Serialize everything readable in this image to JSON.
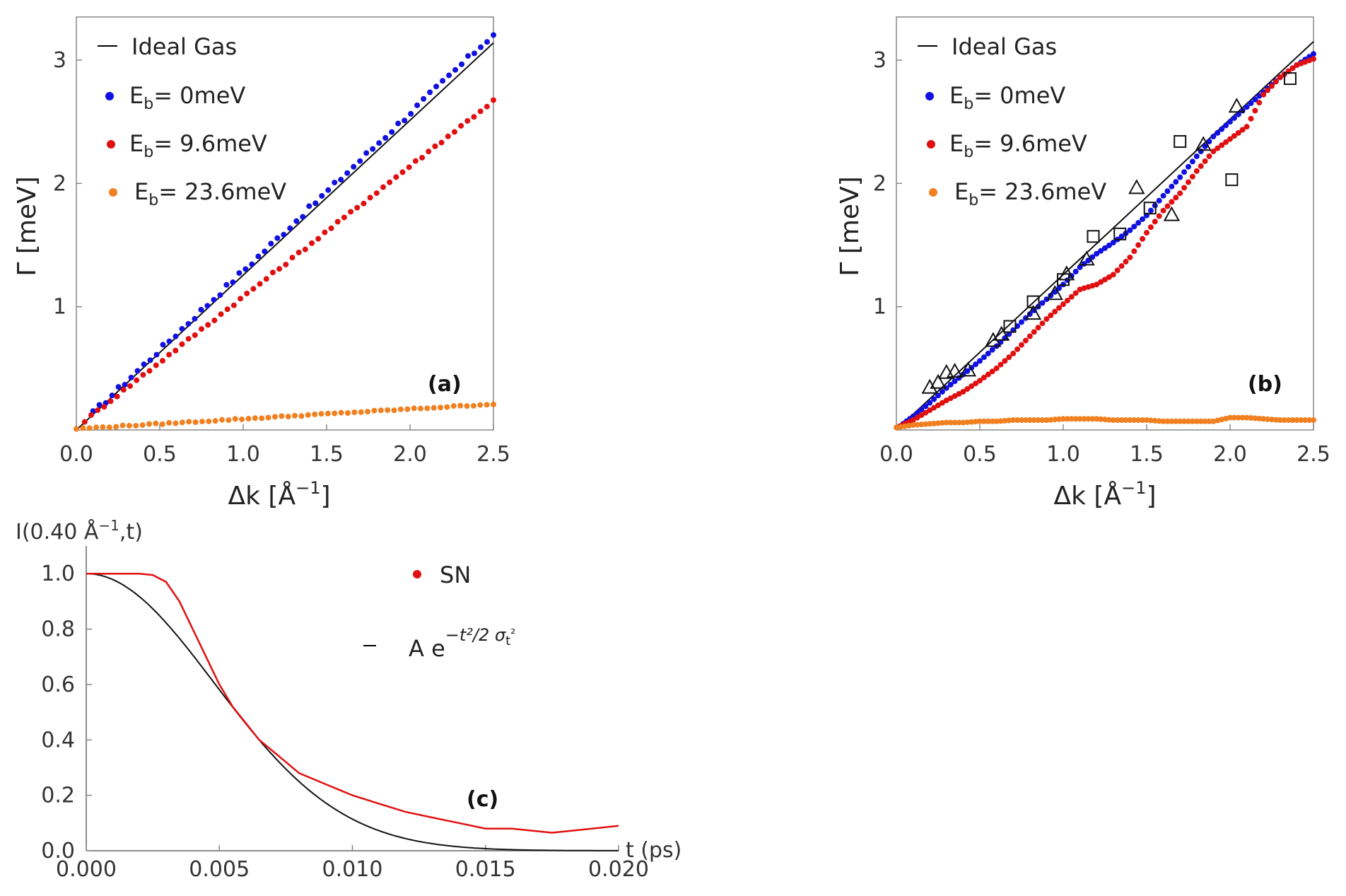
{
  "chart_data": [
    {
      "type": "scatter",
      "panel": "a",
      "panel_label": "(a)",
      "xlabel": "Δk [Å",
      "xlabel_sup": "−1",
      "xlabel_end": "]",
      "ylabel": "Γ [meV]",
      "xlim": [
        0,
        2.5
      ],
      "ylim": [
        0,
        3.35
      ],
      "xticks": [
        0.0,
        0.5,
        1.0,
        1.5,
        2.0,
        2.5
      ],
      "xtick_labels": [
        "0.0",
        "0.5",
        "1.0",
        "1.5",
        "2.0",
        "2.5"
      ],
      "yticks": [
        1,
        2,
        3
      ],
      "ytick_labels": [
        "1",
        "2",
        "3"
      ],
      "legend": [
        {
          "label": "Ideal Gas",
          "sub": "",
          "rest": "",
          "marker": "line",
          "color": "#000000"
        },
        {
          "label": "E",
          "sub": "b",
          "rest": "= 0meV",
          "marker": "dot",
          "color": "#1010e0"
        },
        {
          "label": "E",
          "sub": "b",
          "rest": "= 9.6meV",
          "marker": "dot",
          "color": "#e01010"
        },
        {
          "label": "E",
          "sub": "b",
          "rest": "= 23.6meV",
          "marker": "dot",
          "color": "#f08020"
        }
      ],
      "ideal_gas": {
        "slope": 1.256,
        "intercept": 0.0
      },
      "series": [
        {
          "name": "E_b = 0meV",
          "color": "#1010e0",
          "x_start": 0.1,
          "x_end": 2.5,
          "n": 64,
          "slope": 1.28,
          "intercept": 0.01,
          "jitter": 0.02
        },
        {
          "name": "E_b = 9.6meV",
          "color": "#e01010",
          "x_start": 0.05,
          "x_end": 2.5,
          "n": 64,
          "slope": 1.06,
          "intercept": 0.02,
          "jitter": 0.01
        },
        {
          "name": "E_b = 23.6meV",
          "color": "#f08020",
          "x_start": 0.0,
          "x_end": 2.5,
          "n": 64,
          "slope": 0.08,
          "intercept": 0.01,
          "jitter": 0.005
        }
      ]
    },
    {
      "type": "scatter",
      "panel": "b",
      "panel_label": "(b)",
      "xlabel": "Δk [Å",
      "xlabel_sup": "−1",
      "xlabel_end": "]",
      "ylabel": "Γ [meV]",
      "xlim": [
        0,
        2.5
      ],
      "ylim": [
        0,
        3.35
      ],
      "xticks": [
        0.0,
        0.5,
        1.0,
        1.5,
        2.0,
        2.5
      ],
      "xtick_labels": [
        "0.0",
        "0.5",
        "1.0",
        "1.5",
        "2.0",
        "2.5"
      ],
      "yticks": [
        1,
        2,
        3
      ],
      "ytick_labels": [
        "1",
        "2",
        "3"
      ],
      "legend": [
        {
          "label": "Ideal Gas",
          "sub": "",
          "rest": "",
          "marker": "line",
          "color": "#000000"
        },
        {
          "label": "E",
          "sub": "b",
          "rest": "= 0meV",
          "marker": "dot",
          "color": "#1010e0"
        },
        {
          "label": "E",
          "sub": "b",
          "rest": "= 9.6meV",
          "marker": "dot",
          "color": "#e01010"
        },
        {
          "label": "E",
          "sub": "b",
          "rest": "= 23.6meV",
          "marker": "dot",
          "color": "#f08020"
        }
      ],
      "ideal_gas": {
        "slope": 1.26,
        "intercept": 0.0
      },
      "series": [
        {
          "name": "E_b = 0meV",
          "color": "#1010e0",
          "points": [
            [
              0.02,
              0.03
            ],
            [
              0.1,
              0.11
            ],
            [
              0.2,
              0.22
            ],
            [
              0.3,
              0.34
            ],
            [
              0.4,
              0.45
            ],
            [
              0.5,
              0.56
            ],
            [
              0.6,
              0.68
            ],
            [
              0.7,
              0.81
            ],
            [
              0.8,
              0.94
            ],
            [
              0.9,
              1.06
            ],
            [
              1.0,
              1.18
            ],
            [
              1.1,
              1.32
            ],
            [
              1.2,
              1.43
            ],
            [
              1.3,
              1.52
            ],
            [
              1.4,
              1.62
            ],
            [
              1.5,
              1.74
            ],
            [
              1.6,
              1.9
            ],
            [
              1.7,
              2.05
            ],
            [
              1.8,
              2.22
            ],
            [
              1.9,
              2.38
            ],
            [
              2.0,
              2.5
            ],
            [
              2.1,
              2.62
            ],
            [
              2.2,
              2.74
            ],
            [
              2.3,
              2.86
            ],
            [
              2.4,
              2.96
            ],
            [
              2.5,
              3.05
            ]
          ]
        },
        {
          "name": "E_b = 9.6meV",
          "color": "#e01010",
          "points": [
            [
              0.02,
              0.03
            ],
            [
              0.1,
              0.08
            ],
            [
              0.2,
              0.16
            ],
            [
              0.3,
              0.24
            ],
            [
              0.4,
              0.31
            ],
            [
              0.5,
              0.4
            ],
            [
              0.6,
              0.5
            ],
            [
              0.7,
              0.62
            ],
            [
              0.8,
              0.76
            ],
            [
              0.9,
              0.9
            ],
            [
              1.0,
              1.02
            ],
            [
              1.1,
              1.14
            ],
            [
              1.2,
              1.18
            ],
            [
              1.3,
              1.26
            ],
            [
              1.4,
              1.4
            ],
            [
              1.5,
              1.6
            ],
            [
              1.6,
              1.78
            ],
            [
              1.7,
              1.92
            ],
            [
              1.8,
              2.1
            ],
            [
              1.9,
              2.26
            ],
            [
              2.0,
              2.36
            ],
            [
              2.1,
              2.46
            ],
            [
              2.2,
              2.72
            ],
            [
              2.3,
              2.86
            ],
            [
              2.4,
              2.96
            ],
            [
              2.5,
              3.01
            ]
          ]
        },
        {
          "name": "E_b = 23.6meV",
          "color": "#f08020",
          "points": [
            [
              0.0,
              0.02
            ],
            [
              0.1,
              0.04
            ],
            [
              0.2,
              0.05
            ],
            [
              0.3,
              0.06
            ],
            [
              0.4,
              0.06
            ],
            [
              0.5,
              0.07
            ],
            [
              0.6,
              0.07
            ],
            [
              0.7,
              0.08
            ],
            [
              0.8,
              0.08
            ],
            [
              0.9,
              0.08
            ],
            [
              1.0,
              0.09
            ],
            [
              1.1,
              0.09
            ],
            [
              1.2,
              0.09
            ],
            [
              1.3,
              0.08
            ],
            [
              1.4,
              0.08
            ],
            [
              1.5,
              0.08
            ],
            [
              1.6,
              0.07
            ],
            [
              1.7,
              0.07
            ],
            [
              1.8,
              0.07
            ],
            [
              1.9,
              0.07
            ],
            [
              2.0,
              0.1
            ],
            [
              2.1,
              0.1
            ],
            [
              2.2,
              0.09
            ],
            [
              2.3,
              0.08
            ],
            [
              2.4,
              0.08
            ],
            [
              2.5,
              0.08
            ]
          ]
        },
        {
          "name": "squares",
          "marker": "square",
          "color": "#000000",
          "points": [
            [
              0.68,
              0.84
            ],
            [
              0.82,
              1.04
            ],
            [
              1.0,
              1.22
            ],
            [
              1.18,
              1.57
            ],
            [
              1.34,
              1.59
            ],
            [
              1.52,
              1.8
            ],
            [
              1.7,
              2.34
            ],
            [
              2.01,
              2.03
            ],
            [
              2.36,
              2.85
            ]
          ]
        },
        {
          "name": "triangles",
          "marker": "triangle",
          "color": "#000000",
          "points": [
            [
              0.2,
              0.34
            ],
            [
              0.25,
              0.38
            ],
            [
              0.3,
              0.46
            ],
            [
              0.35,
              0.47
            ],
            [
              0.43,
              0.48
            ],
            [
              0.58,
              0.72
            ],
            [
              0.63,
              0.77
            ],
            [
              0.82,
              0.94
            ],
            [
              0.95,
              1.1
            ],
            [
              1.02,
              1.26
            ],
            [
              1.14,
              1.38
            ],
            [
              1.44,
              1.96
            ],
            [
              1.65,
              1.74
            ],
            [
              1.84,
              2.31
            ],
            [
              2.04,
              2.62
            ]
          ]
        }
      ]
    },
    {
      "type": "line",
      "panel": "c",
      "panel_label": "(c)",
      "ylabel": "I(0.40 Å",
      "ylabel_sup": "−1",
      "ylabel_end": ",t)",
      "xlabel": "t (ps)",
      "xlim": [
        0,
        0.02
      ],
      "ylim": [
        0,
        1.1
      ],
      "xticks": [
        0,
        0.005,
        0.01,
        0.015,
        0.02
      ],
      "xtick_labels": [
        "0.000",
        "0.005",
        "0.010",
        "0.015",
        "0.020"
      ],
      "yticks": [
        0,
        0.2,
        0.4,
        0.6,
        0.8,
        1.0
      ],
      "ytick_labels": [
        "0.0",
        "0.2",
        "0.4",
        "0.6",
        "0.8",
        "1.0"
      ],
      "legend": [
        {
          "label": "SN",
          "marker": "dot",
          "color": "#e01010"
        },
        {
          "label": "A e",
          "sup": "−t²/2 σ",
          "sup_sub": "t",
          "sup_end": "²",
          "marker": "line",
          "color": "#000000"
        }
      ],
      "gaussian_fit": {
        "A": 1.0,
        "sigma_t": 0.0048
      },
      "series": [
        {
          "name": "SN",
          "color": "#e01010",
          "points": [
            [
              0,
              1.0
            ],
            [
              0.001,
              1.0
            ],
            [
              0.002,
              1.0
            ],
            [
              0.0025,
              0.995
            ],
            [
              0.003,
              0.97
            ],
            [
              0.0035,
              0.9
            ],
            [
              0.004,
              0.8
            ],
            [
              0.0045,
              0.7
            ],
            [
              0.005,
              0.6
            ],
            [
              0.0055,
              0.52
            ],
            [
              0.006,
              0.46
            ],
            [
              0.0065,
              0.4
            ],
            [
              0.007,
              0.36
            ],
            [
              0.0075,
              0.32
            ],
            [
              0.008,
              0.28
            ],
            [
              0.0085,
              0.26
            ],
            [
              0.009,
              0.24
            ],
            [
              0.0095,
              0.22
            ],
            [
              0.01,
              0.2
            ],
            [
              0.011,
              0.17
            ],
            [
              0.012,
              0.14
            ],
            [
              0.013,
              0.12
            ],
            [
              0.014,
              0.1
            ],
            [
              0.015,
              0.08
            ],
            [
              0.016,
              0.08
            ],
            [
              0.017,
              0.07
            ],
            [
              0.0175,
              0.065
            ],
            [
              0.018,
              0.07
            ],
            [
              0.019,
              0.08
            ],
            [
              0.02,
              0.09
            ]
          ]
        }
      ]
    }
  ]
}
